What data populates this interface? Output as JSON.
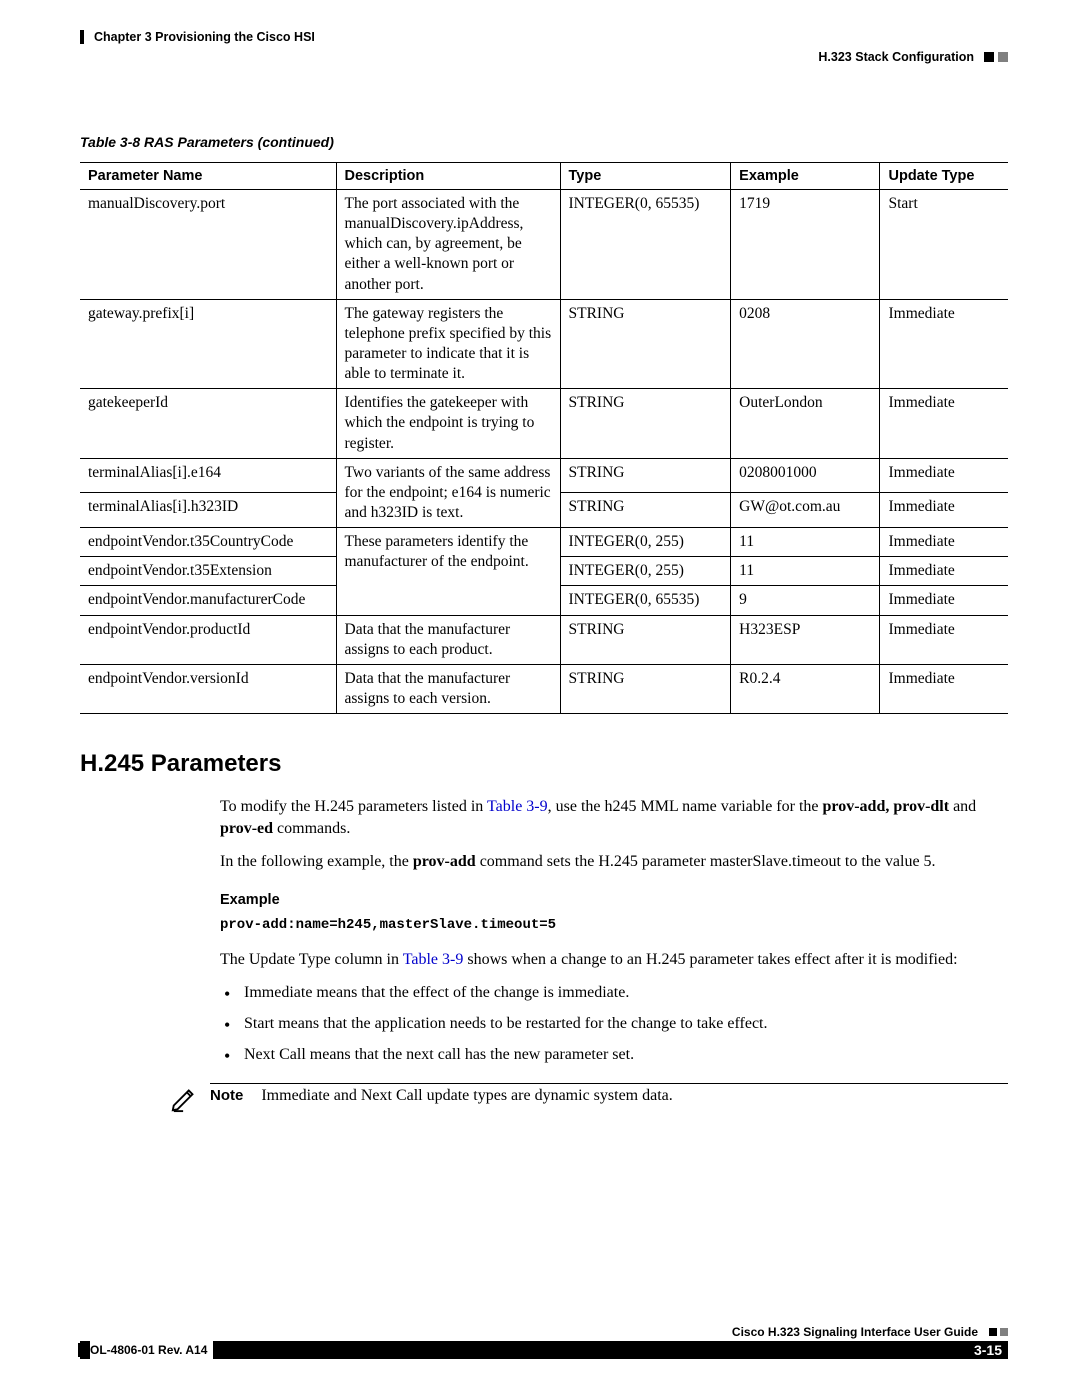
{
  "header": {
    "chapter": "Chapter 3      Provisioning the Cisco HSI",
    "section": "H.323 Stack Configuration"
  },
  "table": {
    "caption": "Table 3-8    RAS Parameters (continued)",
    "columns": [
      "Parameter Name",
      "Description",
      "Type",
      "Example",
      "Update Type"
    ],
    "rows": [
      {
        "name": "manualDiscovery.port",
        "desc": "The port associated with the manualDiscovery.ipAddress, which can, by agreement, be either a well-known port or another port.",
        "type": "INTEGER(0, 65535)",
        "example": "1719",
        "update": "Start",
        "desc_rowspan": 1
      },
      {
        "name": "gateway.prefix[i]",
        "desc": "The gateway registers the telephone prefix specified by this parameter to indicate that it is able to terminate it.",
        "type": "STRING",
        "example": "0208",
        "update": "Immediate",
        "desc_rowspan": 1
      },
      {
        "name": "gatekeeperId",
        "desc": "Identifies the gatekeeper with which the endpoint is trying to register.",
        "type": "STRING",
        "example": "OuterLondon",
        "update": "Immediate",
        "desc_rowspan": 1
      },
      {
        "name": "terminalAlias[i].e164",
        "desc": "Two variants of the same address for the endpoint; e164 is numeric and h323ID is text.",
        "type": "STRING",
        "example": "0208001000",
        "update": "Immediate",
        "desc_rowspan": 2
      },
      {
        "name": "terminalAlias[i].h323ID",
        "type": "STRING",
        "example": "GW@ot.com.au",
        "update": "Immediate"
      },
      {
        "name": "endpointVendor.t35CountryCode",
        "desc": "These parameters identify the manufacturer of the endpoint.",
        "type": "INTEGER(0, 255)",
        "example": "11",
        "update": "Immediate",
        "desc_rowspan": 3
      },
      {
        "name": "endpointVendor.t35Extension",
        "type": "INTEGER(0, 255)",
        "example": "11",
        "update": "Immediate"
      },
      {
        "name": "endpointVendor.manufacturerCode",
        "type": "INTEGER(0, 65535)",
        "example": "9",
        "update": "Immediate"
      },
      {
        "name": "endpointVendor.productId",
        "desc": "Data that the manufacturer assigns to each product.",
        "type": "STRING",
        "example": "H323ESP",
        "update": "Immediate",
        "desc_rowspan": 1
      },
      {
        "name": "endpointVendor.versionId",
        "desc": "Data that the manufacturer assigns to each version.",
        "type": "STRING",
        "example": "R0.2.4",
        "update": "Immediate",
        "desc_rowspan": 1
      }
    ]
  },
  "section_title": "H.245 Parameters",
  "para1_a": "To modify the H.245 parameters listed in ",
  "para1_link1": "Table 3-9",
  "para1_b": ", use the h245 MML name variable for the ",
  "para1_bold": "prov-add, prov-dlt",
  "para1_c": " and ",
  "para1_bold2": "prov-ed",
  "para1_d": " commands.",
  "para2_a": "In the following example, the ",
  "para2_bold": "prov-add",
  "para2_b": " command sets the H.245 parameter masterSlave.timeout to the value 5.",
  "example_label": "Example",
  "example_code": "prov-add:name=h245,masterSlave.timeout=5",
  "para3_a": "The Update Type column in ",
  "para3_link": "Table 3-9",
  "para3_b": " shows when a change to an H.245 parameter takes effect after it is modified:",
  "bullets": [
    "Immediate means that the effect of the change is immediate.",
    "Start means that the application needs to be restarted for the change to take effect.",
    "Next Call means that the next call has the new parameter set."
  ],
  "note_label": "Note",
  "note_text": "Immediate and Next Call update types are dynamic system data.",
  "footer": {
    "guide": "Cisco H.323 Signaling Interface User Guide",
    "rev": "OL-4806-01 Rev. A14",
    "page": "3-15"
  }
}
